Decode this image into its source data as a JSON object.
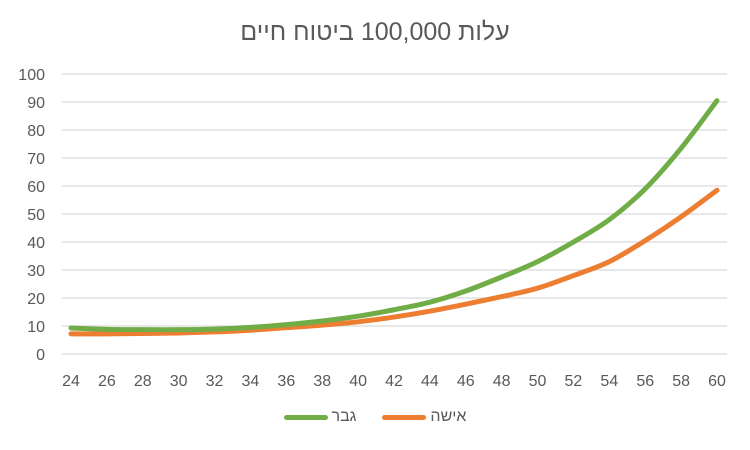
{
  "chart_data": {
    "type": "line",
    "title": "עלות 100,000 ביטוח חיים",
    "xlabel": "",
    "ylabel": "",
    "x": [
      24,
      26,
      28,
      30,
      32,
      34,
      36,
      38,
      40,
      42,
      44,
      46,
      48,
      50,
      52,
      54,
      56,
      58,
      60
    ],
    "ylim": [
      0,
      100
    ],
    "yticks": [
      0,
      10,
      20,
      30,
      40,
      50,
      60,
      70,
      80,
      90,
      100
    ],
    "grid": "horizontal",
    "legend_position": "bottom",
    "series": [
      {
        "name": "גבר",
        "color": "#70AD47",
        "values": [
          9.3,
          8.8,
          8.7,
          8.7,
          8.9,
          9.5,
          10.5,
          11.8,
          13.5,
          15.8,
          18.5,
          22.5,
          27.5,
          33,
          40,
          48,
          59,
          73.5,
          90.5
        ]
      },
      {
        "name": "אישה",
        "color": "#ED7D31",
        "values": [
          7.2,
          7.2,
          7.3,
          7.5,
          7.9,
          8.5,
          9.4,
          10.3,
          11.5,
          13.2,
          15.3,
          17.8,
          20.5,
          23.5,
          28,
          33,
          40.5,
          49,
          58.5
        ]
      }
    ]
  },
  "legend": {
    "items": [
      {
        "label": "גבר",
        "color": "#70AD47"
      },
      {
        "label": "אישה",
        "color": "#ED7D31"
      }
    ]
  }
}
